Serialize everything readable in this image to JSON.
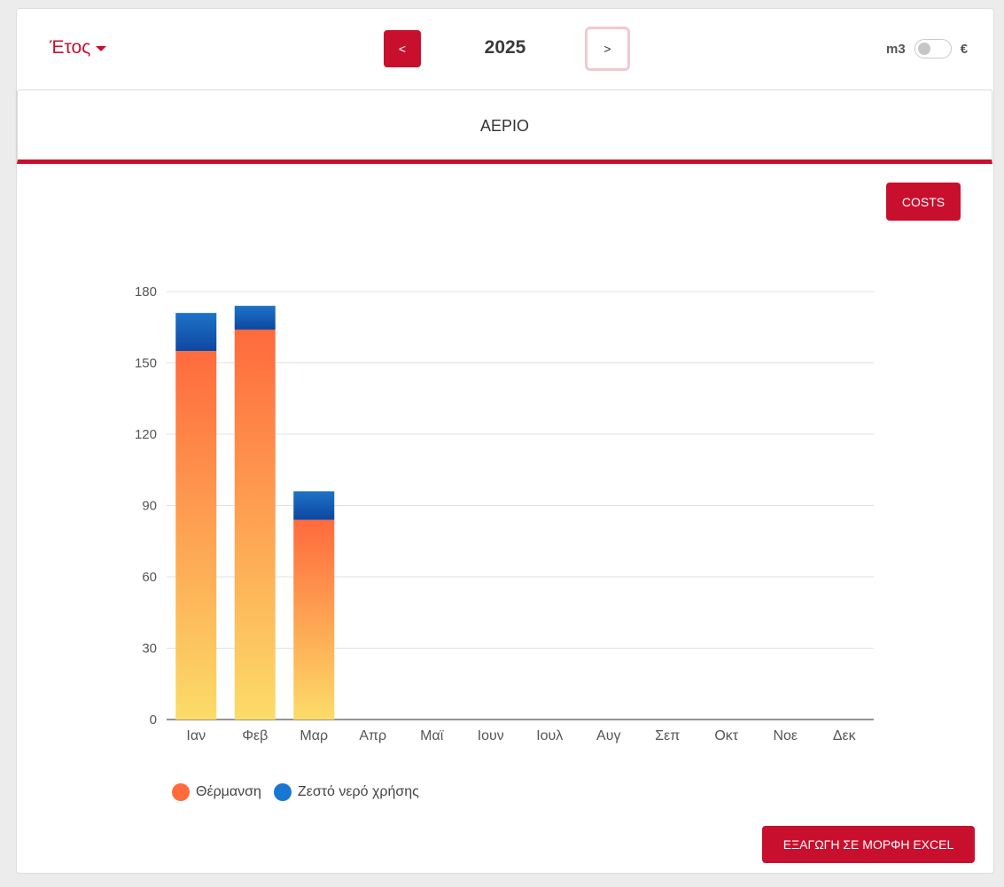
{
  "header": {
    "year_dropdown_label": "Έτος",
    "prev_label": "<",
    "next_label": ">",
    "year": "2025",
    "unit_left": "m3",
    "unit_right": "€"
  },
  "tab": {
    "label": "ΑΕΡΙΟ"
  },
  "buttons": {
    "costs": "COSTS",
    "export_excel": "ΕΞΑΓΩΓΗ ΣΕ ΜΟΡΦΗ EXCEL"
  },
  "colors": {
    "accent": "#c8102e",
    "heating_top": "#ff6a3d",
    "heating_bottom": "#fcdc68",
    "water_top": "#1e73c8",
    "water_bottom": "#0d47a1",
    "legend_heating": "#ff6b3d",
    "legend_water": "#1976d2"
  },
  "chart_data": {
    "type": "bar",
    "stacked": true,
    "categories": [
      "Ιαν",
      "Φεβ",
      "Μαρ",
      "Απρ",
      "Μαϊ",
      "Ιουν",
      "Ιουλ",
      "Αυγ",
      "Σεπ",
      "Οκτ",
      "Νοε",
      "Δεκ"
    ],
    "series": [
      {
        "name": "Θέρμανση",
        "values": [
          155,
          164,
          84,
          0,
          0,
          0,
          0,
          0,
          0,
          0,
          0,
          0
        ]
      },
      {
        "name": "Ζεστό νερό χρήσης",
        "values": [
          16,
          10,
          12,
          0,
          0,
          0,
          0,
          0,
          0,
          0,
          0,
          0
        ]
      }
    ],
    "yticks": [
      0,
      30,
      60,
      90,
      120,
      150,
      180
    ],
    "ylim": [
      0,
      180
    ],
    "grid": true,
    "legend_position": "bottom-left"
  }
}
